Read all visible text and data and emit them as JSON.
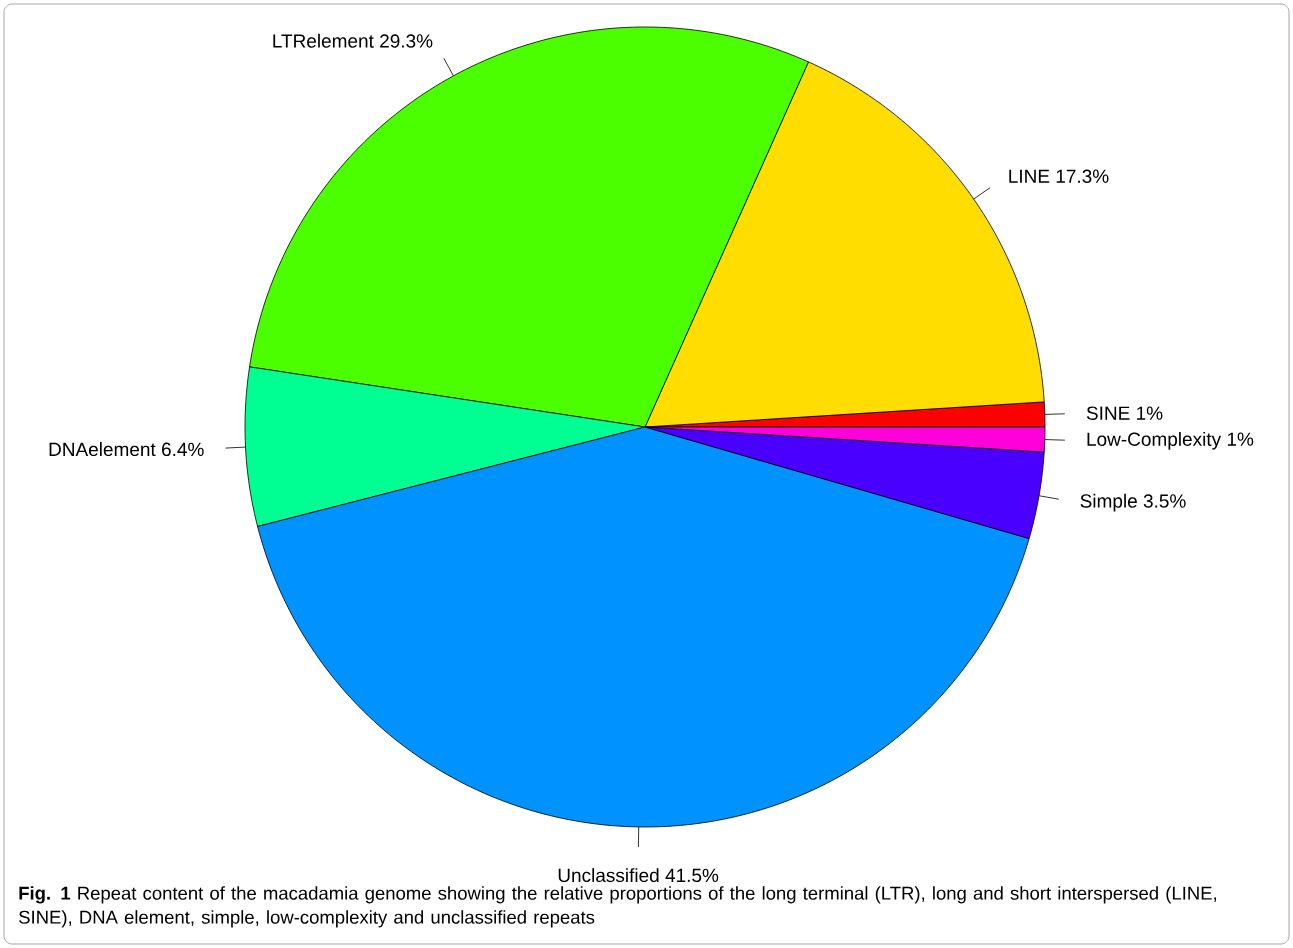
{
  "chart_data": {
    "type": "pie",
    "categories": [
      "SINE",
      "LINE",
      "LTRelement",
      "DNAelement",
      "Unclassified",
      "Simple",
      "Low-Complexity"
    ],
    "values": [
      1,
      17.3,
      29.3,
      6.4,
      41.5,
      3.5,
      1
    ],
    "value_labels": [
      "1%",
      "17.3%",
      "29.3%",
      "6.4%",
      "41.5%",
      "3.5%",
      "1%"
    ],
    "colors": [
      "#ff0000",
      "#ffdd00",
      "#4cff00",
      "#00ff92",
      "#0092ff",
      "#4900ff",
      "#ff00db"
    ],
    "annotations": [
      "**Fig. 1** Repeat content of the macadamia genome showing the relative proportions of the long terminal (LTR), long and short interspersed (LINE, SINE), DNA element, simple, low-complexity and unclassified repeats"
    ]
  }
}
